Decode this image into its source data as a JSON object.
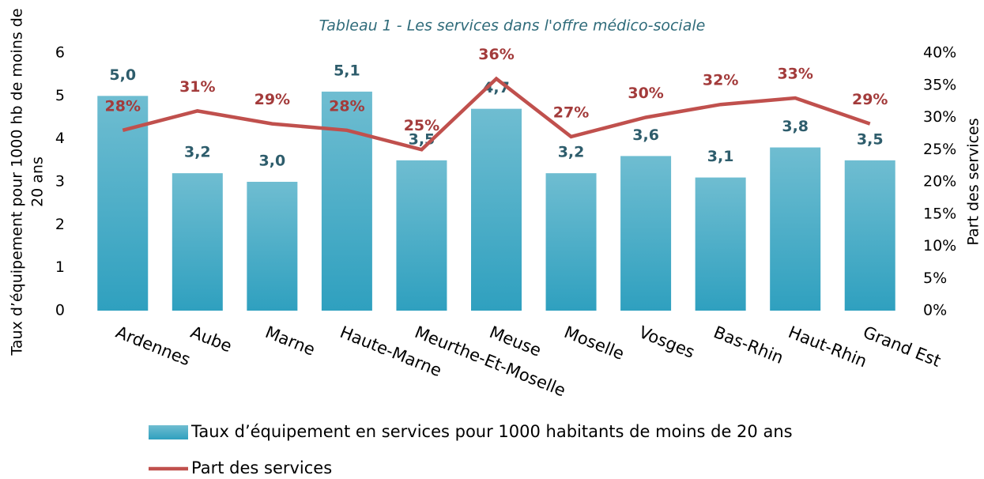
{
  "chart_data": {
    "type": "bar_line",
    "title": "Tableau 1 - Les services dans l'offre médico-sociale",
    "ylabel": [
      "Taux d’équipement pour 1000 hb de moins de",
      "20 ans"
    ],
    "y2label": "Part des services",
    "categories": [
      "Ardennes",
      "Aube",
      "Marne",
      "Haute-Marne",
      "Meurthe-Et-Moselle",
      "Meuse",
      "Moselle",
      "Vosges",
      "Bas-Rhin",
      "Haut-Rhin",
      "Grand Est"
    ],
    "series": [
      {
        "name": "Taux d’équipement en services pour 1000 habitants de moins de 20 ans",
        "type": "bar",
        "color": "#3aaac8",
        "values": [
          5.0,
          3.2,
          3.0,
          5.1,
          3.5,
          4.7,
          3.2,
          3.6,
          3.1,
          3.8,
          3.5
        ],
        "value_labels": [
          "5,0",
          "3,2",
          "3,0",
          "5,1",
          "3,5",
          "4,7",
          "3,2",
          "3,6",
          "3,1",
          "3,8",
          "3,5"
        ]
      },
      {
        "name": "Part des services",
        "type": "line",
        "axis": "y2",
        "color": "#c0504d",
        "values": [
          28,
          31,
          29,
          28,
          25,
          36,
          27,
          30,
          32,
          33,
          29
        ],
        "value_labels": [
          "28%",
          "31%",
          "29%",
          "28%",
          "25%",
          "36%",
          "27%",
          "30%",
          "32%",
          "33%",
          "29%"
        ]
      }
    ],
    "ylim": [
      0,
      6
    ],
    "yticks": [
      0,
      1,
      2,
      3,
      4,
      5,
      6
    ],
    "y2lim": [
      0,
      40
    ],
    "y2ticks": [
      {
        "value": 0,
        "label": "0%"
      },
      {
        "value": 5,
        "label": "5%"
      },
      {
        "value": 10,
        "label": "10%"
      },
      {
        "value": 15,
        "label": "15%"
      },
      {
        "value": 20,
        "label": "20%"
      },
      {
        "value": 25,
        "label": "25%"
      },
      {
        "value": 30,
        "label": "30%"
      },
      {
        "value": 35,
        "label": "35%"
      },
      {
        "value": 40,
        "label": "40%"
      }
    ],
    "grid": false,
    "legend": "bottom"
  }
}
